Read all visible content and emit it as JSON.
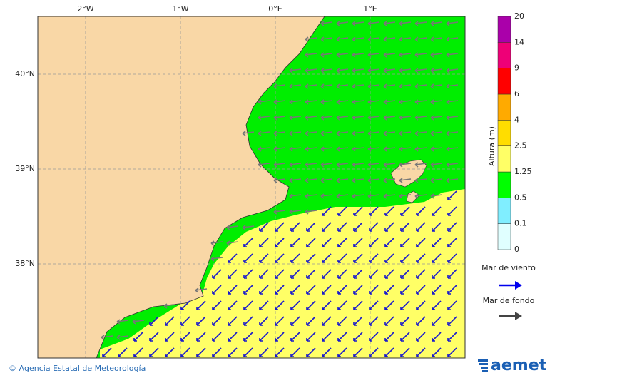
{
  "map": {
    "lon_labels": [
      "2°W",
      "1°W",
      "0°E",
      "1°E"
    ],
    "lat_labels": [
      "40°N",
      "39°N",
      "38°N"
    ]
  },
  "legend": {
    "title": "Altura (m)",
    "ticks": [
      0,
      0.1,
      0.5,
      1.25,
      2.5,
      4,
      6,
      9,
      14,
      20
    ],
    "colors": [
      "#e0ffff",
      "#80eeff",
      "#00ff00",
      "#ffff66",
      "#ffdd00",
      "#ffaa00",
      "#ff0000",
      "#ee0077",
      "#aa00aa"
    ],
    "wind_sea": "Mar de viento",
    "swell": "Mar de fondo"
  },
  "footer": {
    "credit": "© Agencia Estatal de Meteorología",
    "logo": "aemet"
  }
}
